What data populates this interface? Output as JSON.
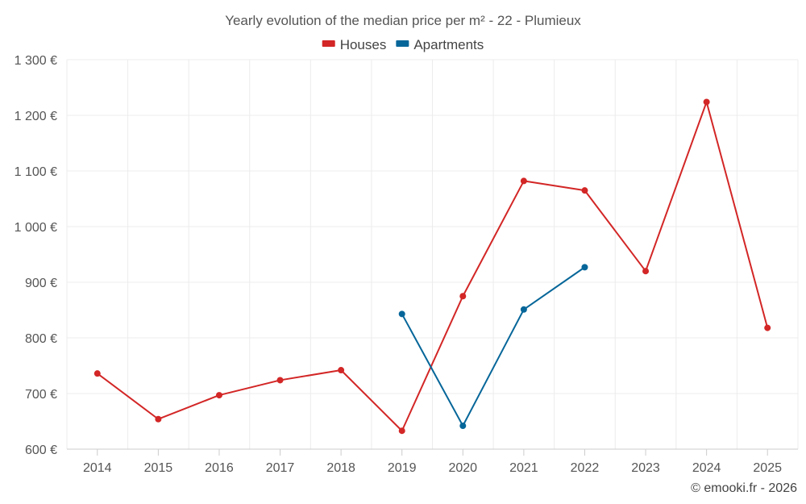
{
  "chart_data": {
    "type": "line",
    "title": "Yearly evolution of the median price per m² - 22 - Plumieux",
    "categories": [
      "2014",
      "2015",
      "2016",
      "2017",
      "2018",
      "2019",
      "2020",
      "2021",
      "2022",
      "2023",
      "2024",
      "2025"
    ],
    "series": [
      {
        "name": "Houses",
        "color": "#d32626",
        "values": [
          736,
          654,
          697,
          724,
          742,
          633,
          875,
          1082,
          1065,
          920,
          1224,
          818
        ]
      },
      {
        "name": "Apartments",
        "color": "#066699",
        "values": [
          null,
          null,
          null,
          null,
          null,
          843,
          642,
          851,
          927,
          null,
          null,
          null
        ]
      }
    ],
    "ylim": [
      600,
      1300
    ],
    "yticks": [
      600,
      700,
      800,
      900,
      1000,
      1100,
      1200,
      1300
    ],
    "ytick_labels": [
      "600 €",
      "700 €",
      "800 €",
      "900 €",
      "1 000 €",
      "1 100 €",
      "1 200 €",
      "1 300 €"
    ],
    "xlabel": "",
    "ylabel": "",
    "grid": true,
    "legend": "top-center"
  },
  "credit": "© emooki.fr - 2026"
}
